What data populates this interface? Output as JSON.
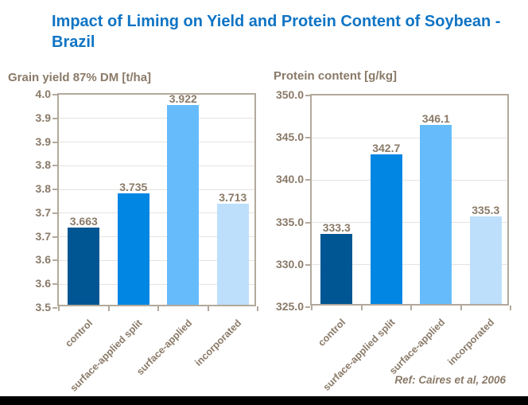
{
  "page": {
    "title": "Impact of Liming on Yield and Protein Content of Soybean - Brazil",
    "reference": "Ref: Caires et al, 2006"
  },
  "colors": {
    "title_blue": "#0F74C4",
    "axis_text": "#8A7A68",
    "plot_border": "#B3A99B",
    "gridline": "#E6E3DE",
    "footer_bar": "#000000",
    "bar_colors": [
      "#005693",
      "#0286E4",
      "#66BCFB",
      "#BDDFFB"
    ]
  },
  "chart_data": [
    {
      "type": "bar",
      "title": "Grain yield 87% DM [t/ha]",
      "categories": [
        "control",
        "surface-applied split",
        "surface-applied",
        "incorporated"
      ],
      "values": [
        3.663,
        3.735,
        3.922,
        3.713
      ],
      "data_labels": [
        "3.663",
        "3.735",
        "3.922",
        "3.713"
      ],
      "ylim": [
        3.5,
        3.95
      ],
      "ytick_step": 0.05,
      "ytick_labels": [
        "4.0",
        "3.9",
        "3.9",
        "3.8",
        "3.8",
        "3.7",
        "3.7",
        "3.6",
        "3.6",
        "3.5"
      ],
      "grid": true,
      "legend": "none"
    },
    {
      "type": "bar",
      "title": "Protein content [g/kg]",
      "categories": [
        "control",
        "surface-applied split",
        "surface-applied",
        "incorporated"
      ],
      "values": [
        333.3,
        342.7,
        346.1,
        335.3
      ],
      "data_labels": [
        "333.3",
        "342.7",
        "346.1",
        "335.3"
      ],
      "ylim": [
        325.0,
        350.0
      ],
      "ytick_step": 5.0,
      "ytick_labels": [
        "350.0",
        "345.0",
        "340.0",
        "335.0",
        "330.0",
        "325.0"
      ],
      "grid": true,
      "legend": "none"
    }
  ]
}
